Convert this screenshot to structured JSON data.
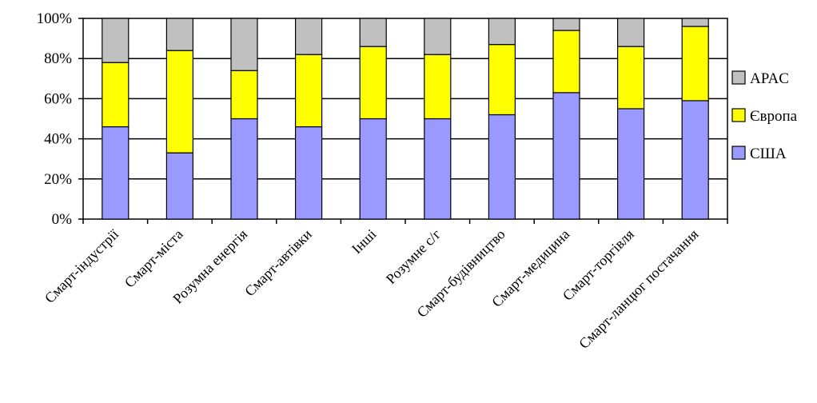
{
  "chart_data": {
    "type": "bar",
    "stacked": true,
    "categories": [
      "Смарт-індустрії",
      "Смарт-міста",
      "Розумна енергія",
      "Смарт-автівки",
      "Інші",
      "Розумне с/г",
      "Смарт-будівництво",
      "Смарт-медицина",
      "Смарт-торгівля",
      "Смарт-ланцюг постачання"
    ],
    "series": [
      {
        "name": "США",
        "color": "#9999ff",
        "values": [
          46,
          33,
          50,
          46,
          50,
          50,
          52,
          63,
          55,
          59
        ]
      },
      {
        "name": "Європа",
        "color": "#ffff00",
        "values": [
          32,
          51,
          24,
          36,
          36,
          32,
          35,
          31,
          31,
          37
        ]
      },
      {
        "name": "APAC",
        "color": "#c0c0c0",
        "values": [
          22,
          16,
          26,
          18,
          14,
          18,
          13,
          6,
          14,
          4
        ]
      }
    ],
    "ylim": [
      0,
      100
    ],
    "yticks": [
      "0%",
      "20%",
      "40%",
      "60%",
      "80%",
      "100%"
    ],
    "grid": true,
    "legend": [
      "APAC",
      "Європа",
      "США"
    ],
    "legend_position": "right",
    "title": "",
    "xlabel": "",
    "ylabel": ""
  }
}
